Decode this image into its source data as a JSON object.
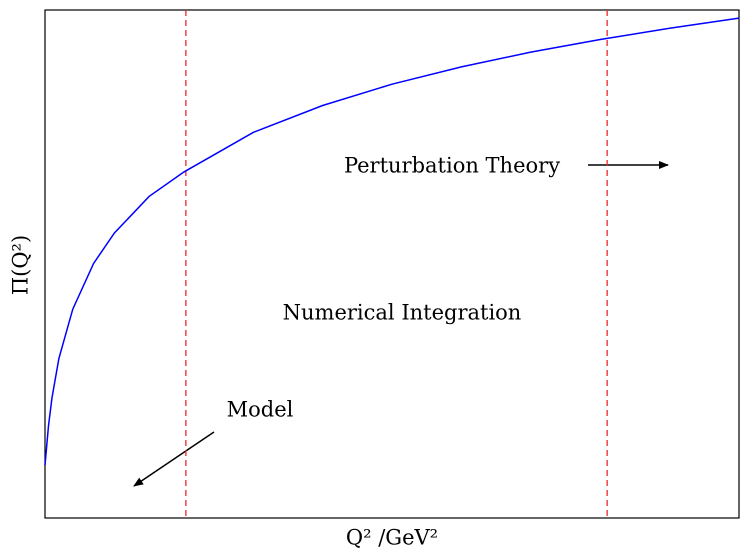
{
  "chart_data": {
    "type": "line",
    "x_label": "Q² /GeV²",
    "y_label": "Π(Q²)",
    "x": [
      0,
      0.005,
      0.01,
      0.02,
      0.04,
      0.07,
      0.1,
      0.15,
      0.2,
      0.3,
      0.4,
      0.5,
      0.6,
      0.7,
      0.8,
      0.9,
      1.0
    ],
    "series": [
      {
        "color": "#0000ff",
        "values": [
          0.104,
          0.181,
          0.236,
          0.314,
          0.411,
          0.501,
          0.561,
          0.633,
          0.681,
          0.759,
          0.812,
          0.854,
          0.888,
          0.917,
          0.942,
          0.964,
          0.984
        ]
      }
    ],
    "xlim": [
      0,
      1
    ],
    "ylim": [
      0,
      1
    ],
    "vlines": {
      "color": "#e8282b",
      "values": [
        0.203,
        0.81
      ]
    },
    "annotations": [
      "Perturbation Theory",
      "Numerical Integration",
      "Model"
    ]
  }
}
